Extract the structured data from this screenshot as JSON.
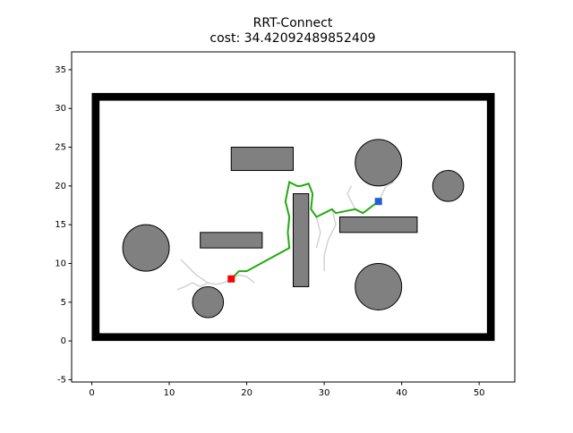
{
  "chart_data": {
    "type": "plan",
    "title": "RRT-Connect",
    "subtitle": "cost: 34.42092489852409",
    "xlim": [
      -2.6,
      54.6
    ],
    "ylim": [
      -5.3,
      37.3
    ],
    "xticks": [
      0,
      10,
      20,
      30,
      40,
      50
    ],
    "yticks": [
      -5,
      0,
      5,
      10,
      15,
      20,
      25,
      30,
      35
    ],
    "boundary": {
      "x": 0,
      "y": 0,
      "width": 52,
      "height": 32,
      "color": "#000000"
    },
    "obstacle_color": "#808080",
    "rectangles": [
      {
        "x": 18,
        "y": 22,
        "width": 8,
        "height": 3
      },
      {
        "x": 14,
        "y": 12,
        "width": 8,
        "height": 2
      },
      {
        "x": 26,
        "y": 7,
        "width": 2,
        "height": 12
      },
      {
        "x": 32,
        "y": 14,
        "width": 10,
        "height": 2
      }
    ],
    "circles": [
      {
        "x": 37,
        "y": 23,
        "r": 3
      },
      {
        "x": 46,
        "y": 20,
        "r": 2
      },
      {
        "x": 7,
        "y": 12,
        "r": 3
      },
      {
        "x": 37,
        "y": 7,
        "r": 3
      },
      {
        "x": 15,
        "y": 5,
        "r": 2
      }
    ],
    "tree_color": "#d3d3d3",
    "tree": [
      {
        "x": [
          18,
          17,
          16,
          15,
          14,
          13,
          12,
          11
        ],
        "y": [
          8,
          7.5,
          7.3,
          7.5,
          7,
          7.5,
          7,
          6.6
        ]
      },
      {
        "x": [
          15,
          13.5,
          12.5,
          11.5
        ],
        "y": [
          7.5,
          8.5,
          9.5,
          10.5
        ]
      },
      {
        "x": [
          18,
          19,
          20,
          21
        ],
        "y": [
          8,
          8.5,
          8.3,
          7.5
        ]
      },
      {
        "x": [
          37,
          37.5,
          38,
          39
        ],
        "y": [
          18,
          19,
          20,
          20.5
        ]
      },
      {
        "x": [
          31,
          31.5,
          30.5,
          30,
          30
        ],
        "y": [
          17,
          15,
          13,
          11,
          9
        ]
      },
      {
        "x": [
          34,
          33.5,
          33,
          33.5
        ],
        "y": [
          17,
          18,
          19,
          20
        ]
      },
      {
        "x": [
          29,
          29.5,
          29
        ],
        "y": [
          16,
          14,
          12
        ]
      }
    ],
    "path": {
      "color": "#22aa11",
      "x": [
        18,
        19,
        20,
        25.5,
        25.3,
        25.5,
        25,
        25.5,
        26.5,
        27,
        28,
        28.5,
        28.3,
        29,
        30,
        31,
        31.5,
        33,
        34,
        35,
        37
      ],
      "y": [
        8,
        9,
        9,
        12,
        14,
        16,
        18,
        20.5,
        20,
        20,
        20.3,
        19,
        17,
        16,
        16.5,
        17,
        16.5,
        16.8,
        17,
        16.5,
        18
      ]
    },
    "start": {
      "x": 18,
      "y": 8,
      "color": "#ff0000"
    },
    "goal": {
      "x": 37,
      "y": 18,
      "color": "#1f5fcf"
    }
  }
}
